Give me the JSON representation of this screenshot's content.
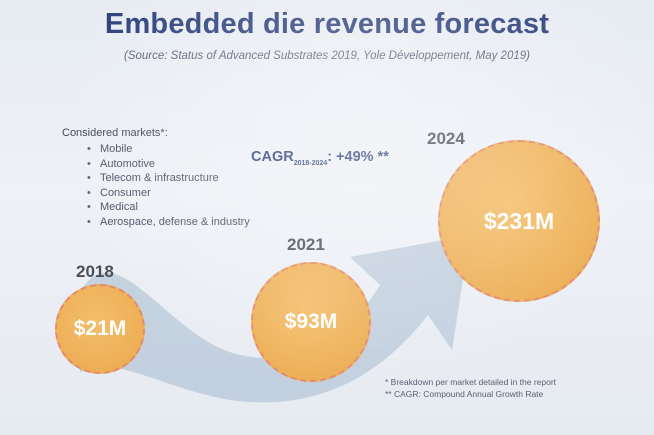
{
  "slide": {
    "title": "Embedded die revenue forecast",
    "subtitle": "(Source: Status of Advanced Substrates 2019, Yole Développement, May 2019)",
    "markets": {
      "heading": "Considered markets*:",
      "items": [
        "Mobile",
        "Automotive",
        "Telecom & infrastructure",
        "Consumer",
        "Medical",
        "Aerospace, defense & industry"
      ]
    },
    "cagr": {
      "label": "CAGR",
      "period": "2018-2024",
      "value": ": +49% **"
    },
    "forecast": [
      {
        "year": "2018",
        "value": "$21M"
      },
      {
        "year": "2021",
        "value": "$93M"
      },
      {
        "year": "2024",
        "value": "$231M"
      }
    ],
    "footnotes": [
      "* Breakdown per market detailed in the report",
      "** CAGR: Compound Annual Growth Rate"
    ],
    "colors": {
      "title": "#2c3f7a",
      "circle_fill": "#eeb159",
      "circle_border": "#e38a6b",
      "arrow": "#b7c7d8"
    }
  }
}
